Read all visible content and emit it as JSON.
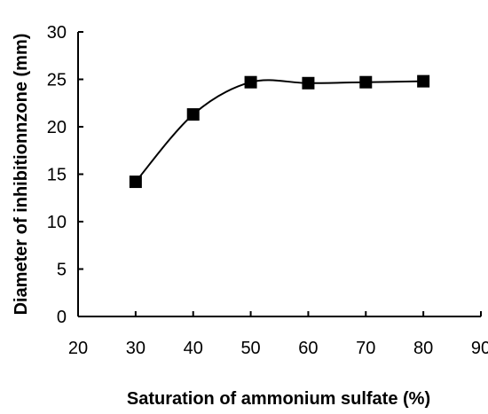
{
  "chart_data": {
    "type": "line",
    "title": "",
    "xlabel": "Saturation of ammonium sulfate  (%)",
    "ylabel": "Diameter of inhibitionnzone  (mm)",
    "xlim": [
      20,
      90
    ],
    "ylim": [
      0,
      30
    ],
    "x_ticks": [
      20,
      30,
      40,
      50,
      60,
      70,
      80,
      90
    ],
    "y_ticks": [
      0,
      5,
      10,
      15,
      20,
      25,
      30
    ],
    "grid": false,
    "legend": "none",
    "series": [
      {
        "x": [
          30,
          40,
          50,
          60,
          70,
          80
        ],
        "values": [
          14.2,
          21.3,
          24.7,
          24.6,
          24.7,
          24.8
        ],
        "marker": "square",
        "smooth": true,
        "color": "#000000"
      }
    ]
  }
}
